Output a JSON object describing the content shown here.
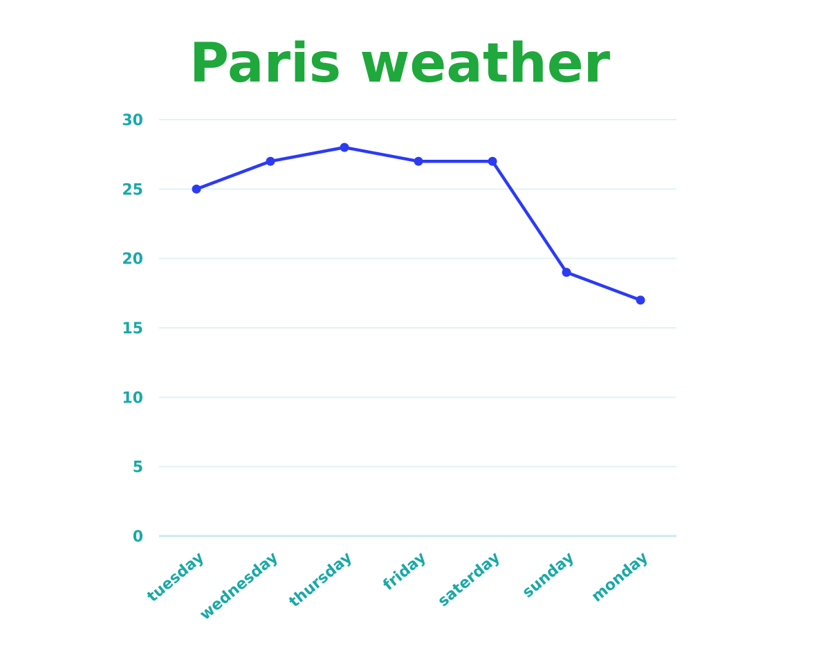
{
  "chart_data": {
    "type": "line",
    "title": "Paris weather",
    "xlabel": "",
    "ylabel": "",
    "categories": [
      "tuesday",
      "wednesday",
      "thursday",
      "friday",
      "saterday",
      "sunday",
      "monday"
    ],
    "series": [
      {
        "values": [
          25,
          27,
          28,
          27,
          27,
          19,
          17
        ]
      }
    ],
    "ylim": [
      0,
      30
    ],
    "yticks": [
      "0",
      "5",
      "10",
      "15",
      "20",
      "25",
      "30"
    ],
    "grid": true,
    "legend": "none",
    "colors": {
      "title": "#1fa83c",
      "line": "#2b3bf5",
      "tick": "#1aa8a8",
      "grid": "#dff3f3",
      "axis": "#c7ecec"
    }
  }
}
